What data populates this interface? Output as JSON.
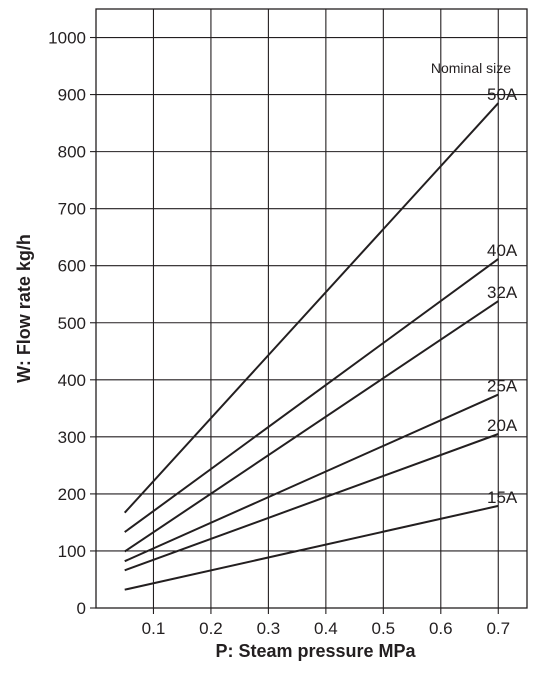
{
  "chart_data": {
    "type": "line",
    "xlabel": "P: Steam pressure MPa",
    "ylabel": "W: Flow rate kg/h",
    "xlim": [
      0,
      0.75
    ],
    "ylim": [
      0,
      1050
    ],
    "x_ticks": [
      0.1,
      0.2,
      0.3,
      0.4,
      0.5,
      0.6,
      0.7
    ],
    "x_tick_labels": [
      "0.1",
      "0.2",
      "0.3",
      "0.4",
      "0.5",
      "0.6",
      "0.7"
    ],
    "y_ticks": [
      0,
      100,
      200,
      300,
      400,
      500,
      600,
      700,
      800,
      900,
      1000
    ],
    "y_tick_labels": [
      "0",
      "100",
      "200",
      "300",
      "400",
      "500",
      "600",
      "700",
      "800",
      "900",
      "1000"
    ],
    "grid": true,
    "legend_title": "Nominal size",
    "series": [
      {
        "name": "50A",
        "x": [
          0.05,
          0.7
        ],
        "y": [
          167,
          885
        ]
      },
      {
        "name": "40A",
        "x": [
          0.05,
          0.7
        ],
        "y": [
          133,
          612
        ]
      },
      {
        "name": "32A",
        "x": [
          0.05,
          0.7
        ],
        "y": [
          99,
          538
        ]
      },
      {
        "name": "25A",
        "x": [
          0.05,
          0.7
        ],
        "y": [
          82,
          374
        ]
      },
      {
        "name": "20A",
        "x": [
          0.05,
          0.7
        ],
        "y": [
          66,
          305
        ]
      },
      {
        "name": "15A",
        "x": [
          0.05,
          0.7
        ],
        "y": [
          32,
          179
        ]
      }
    ]
  }
}
